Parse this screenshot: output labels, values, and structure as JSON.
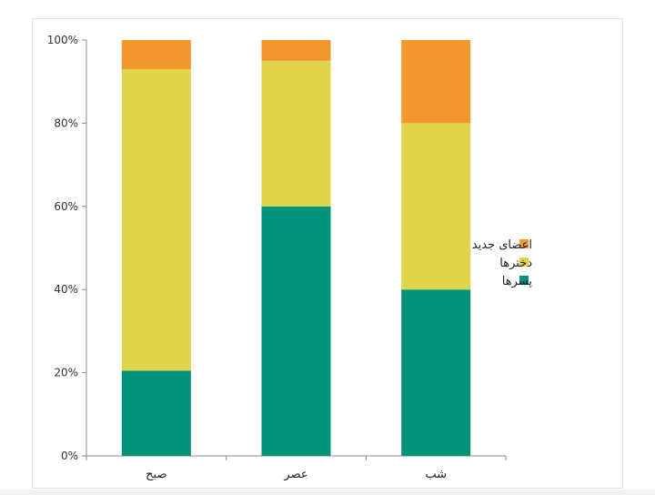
{
  "chart_data": {
    "type": "bar",
    "stacked": true,
    "percent": true,
    "categories": [
      "صبح",
      "عصر",
      "شب"
    ],
    "series": [
      {
        "name": "پسرها",
        "color": "#009378",
        "values": [
          20.5,
          60,
          40
        ]
      },
      {
        "name": "دخترها",
        "color": "#dfd44a",
        "values": [
          72.5,
          35,
          40
        ]
      },
      {
        "name": "اعضای جدید",
        "color": "#f3972f",
        "values": [
          7,
          5,
          20
        ]
      }
    ],
    "ylim": [
      0,
      100
    ],
    "yticks": [
      "0%",
      "20%",
      "40%",
      "60%",
      "80%",
      "100%"
    ],
    "legend_position": "right",
    "grid": false
  }
}
